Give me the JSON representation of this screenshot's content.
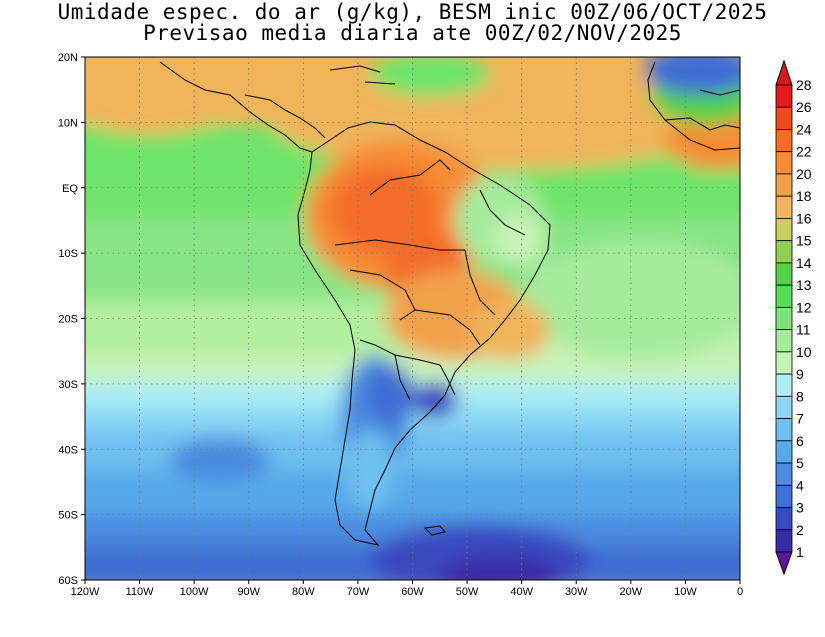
{
  "title": {
    "line1": "Umidade espec. do ar (g/kg), BESM inic 00Z/06/OCT/2025",
    "line2": "Previsao media diaria ate 00Z/02/NOV/2025"
  },
  "map": {
    "projection": "lat-lon",
    "lon_range": [
      -120,
      0
    ],
    "lat_range": [
      -60,
      20
    ],
    "lon_ticks": [
      {
        "value": -120,
        "label": "120W"
      },
      {
        "value": -110,
        "label": "110W"
      },
      {
        "value": -100,
        "label": "100W"
      },
      {
        "value": -90,
        "label": "90W"
      },
      {
        "value": -80,
        "label": "80W"
      },
      {
        "value": -70,
        "label": "70W"
      },
      {
        "value": -60,
        "label": "60W"
      },
      {
        "value": -50,
        "label": "50W"
      },
      {
        "value": -40,
        "label": "40W"
      },
      {
        "value": -30,
        "label": "30W"
      },
      {
        "value": -20,
        "label": "20W"
      },
      {
        "value": -10,
        "label": "10W"
      },
      {
        "value": 0,
        "label": "0"
      }
    ],
    "lat_ticks": [
      {
        "value": 20,
        "label": "20N"
      },
      {
        "value": 10,
        "label": "10N"
      },
      {
        "value": 0,
        "label": "EQ"
      },
      {
        "value": -10,
        "label": "10S"
      },
      {
        "value": -20,
        "label": "20S"
      },
      {
        "value": -30,
        "label": "30S"
      },
      {
        "value": -40,
        "label": "40S"
      },
      {
        "value": -50,
        "label": "50S"
      },
      {
        "value": -60,
        "label": "60S"
      }
    ],
    "grid": "dotted"
  },
  "colorbar": {
    "units": "g/kg",
    "levels": [
      {
        "label": "28",
        "color": "#e41a1c"
      },
      {
        "label": "26",
        "color": "#f04a1c"
      },
      {
        "label": "24",
        "color": "#f46d2b"
      },
      {
        "label": "22",
        "color": "#f78c36"
      },
      {
        "label": "20",
        "color": "#f3a14c"
      },
      {
        "label": "18",
        "color": "#f0b45a"
      },
      {
        "label": "16",
        "color": "#c8cf5e"
      },
      {
        "label": "15",
        "color": "#8fd14f"
      },
      {
        "label": "14",
        "color": "#53d24a"
      },
      {
        "label": "13",
        "color": "#55dd55"
      },
      {
        "label": "12",
        "color": "#7ee37a"
      },
      {
        "label": "11",
        "color": "#a6eb9c"
      },
      {
        "label": "10",
        "color": "#c8f3b8"
      },
      {
        "label": "9",
        "color": "#aeeef3"
      },
      {
        "label": "8",
        "color": "#8cd8f4"
      },
      {
        "label": "7",
        "color": "#6ec0f0"
      },
      {
        "label": "6",
        "color": "#57a8ea"
      },
      {
        "label": "5",
        "color": "#4b8ce0"
      },
      {
        "label": "4",
        "color": "#3f6ed4"
      },
      {
        "label": "3",
        "color": "#3a48bf"
      },
      {
        "label": "2",
        "color": "#3a2aa8"
      },
      {
        "label": "1",
        "color": "#4a1a9a"
      }
    ],
    "max_arrow_color": "#d7191c",
    "min_arrow_color": "#5a1a98"
  }
}
